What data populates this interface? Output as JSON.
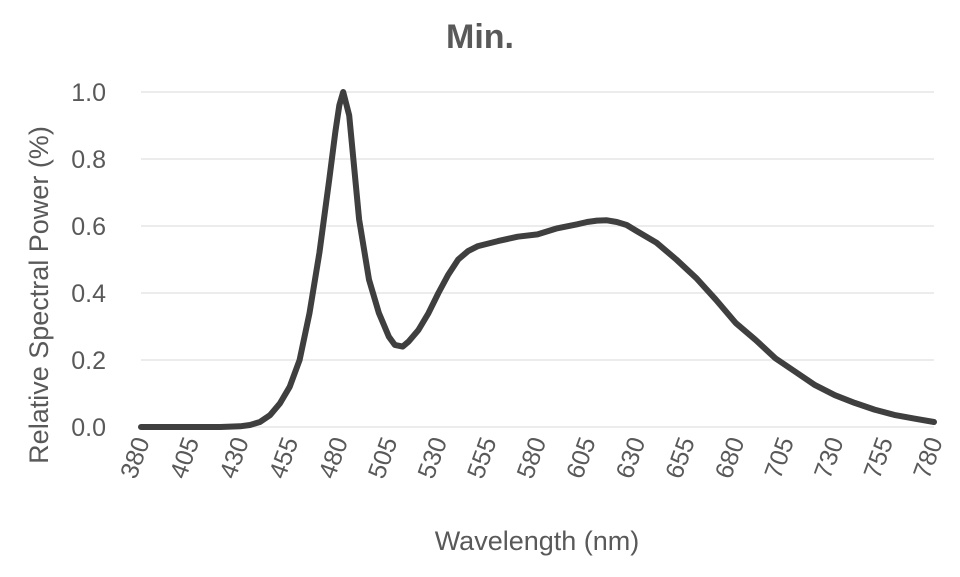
{
  "chart_data": {
    "type": "line",
    "title": "Min.",
    "xlabel": "Wavelength (nm)",
    "ylabel": "Relative Spectral Power (%)",
    "xlim": [
      380,
      780
    ],
    "ylim": [
      0,
      1.0
    ],
    "x_ticks": [
      "380",
      "405",
      "430",
      "455",
      "480",
      "505",
      "530",
      "555",
      "580",
      "605",
      "630",
      "655",
      "680",
      "705",
      "730",
      "755",
      "780"
    ],
    "y_ticks": [
      "0.0",
      "0.2",
      "0.4",
      "0.6",
      "0.8",
      "1.0"
    ],
    "grid": true,
    "legend": "none",
    "series": [
      {
        "name": "Min.",
        "color": "#3f3f3f",
        "x": [
          380,
          400,
          420,
          430,
          435,
          440,
          445,
          450,
          455,
          460,
          465,
          470,
          475,
          478,
          480,
          482,
          485,
          490,
          495,
          500,
          505,
          508,
          512,
          515,
          520,
          525,
          530,
          535,
          540,
          545,
          550,
          560,
          570,
          580,
          590,
          600,
          605,
          610,
          615,
          620,
          625,
          630,
          640,
          650,
          660,
          670,
          680,
          690,
          700,
          710,
          720,
          730,
          740,
          750,
          760,
          770,
          780
        ],
        "y": [
          0.0,
          0.0,
          0.0,
          0.002,
          0.006,
          0.015,
          0.035,
          0.07,
          0.12,
          0.2,
          0.34,
          0.52,
          0.74,
          0.88,
          0.96,
          1.0,
          0.93,
          0.62,
          0.44,
          0.34,
          0.27,
          0.245,
          0.24,
          0.255,
          0.29,
          0.34,
          0.4,
          0.455,
          0.5,
          0.525,
          0.54,
          0.555,
          0.568,
          0.575,
          0.593,
          0.605,
          0.612,
          0.616,
          0.617,
          0.612,
          0.603,
          0.585,
          0.55,
          0.5,
          0.445,
          0.38,
          0.31,
          0.26,
          0.205,
          0.165,
          0.125,
          0.095,
          0.072,
          0.052,
          0.036,
          0.025,
          0.015
        ]
      }
    ]
  }
}
